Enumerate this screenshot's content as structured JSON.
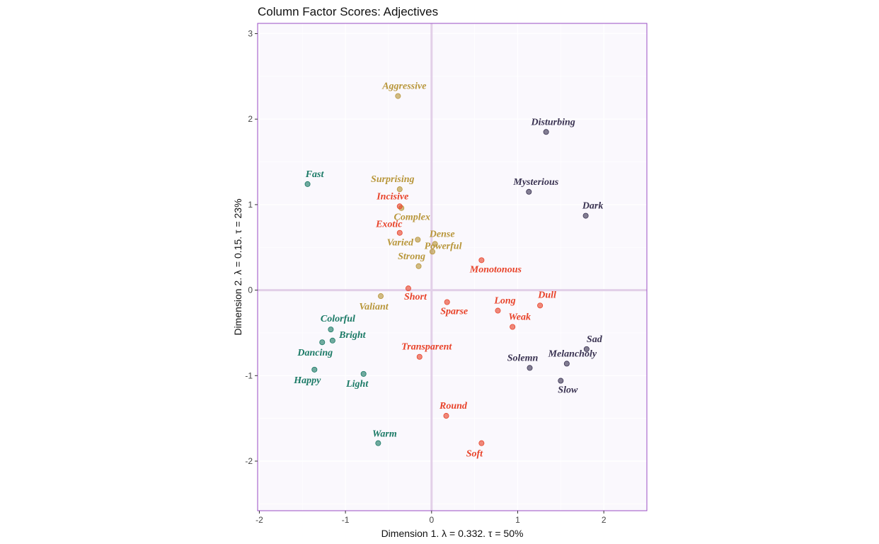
{
  "chart_data": {
    "type": "scatter",
    "title": "Column Factor Scores: Adjectives",
    "xlabel": "Dimension 1.   λ = 0.332.  τ = 50%",
    "ylabel": "Dimension 2.   λ = 0.15.  τ = 23%",
    "xlim": [
      -2.02,
      2.5
    ],
    "ylim": [
      -2.58,
      3.12
    ],
    "xticks": [
      -2,
      -1,
      0,
      1,
      2
    ],
    "yticks": [
      -2,
      -1,
      0,
      1,
      2,
      3
    ],
    "grid": true,
    "legend": "none",
    "colors": {
      "green": "#1b7a66",
      "gold": "#b8963a",
      "red": "#e8432a",
      "navy": "#3a3352",
      "panel_bg": "#faf8fd",
      "panel_border": "#9a4cc4",
      "zero_line": "#e2cfe8"
    },
    "series": [
      {
        "color": "green",
        "points": [
          {
            "label": "Fast",
            "x": -1.44,
            "y": 1.24
          },
          {
            "label": "Colorful",
            "x": -1.17,
            "y": -0.46
          },
          {
            "label": "Bright",
            "x": -1.15,
            "y": -0.59
          },
          {
            "label": "Dancing",
            "x": -1.27,
            "y": -0.61
          },
          {
            "label": "Happy",
            "x": -1.36,
            "y": -0.93
          },
          {
            "label": "Light",
            "x": -0.79,
            "y": -0.98
          },
          {
            "label": "Warm",
            "x": -0.62,
            "y": -1.79
          }
        ]
      },
      {
        "color": "gold",
        "points": [
          {
            "label": "Aggressive",
            "x": -0.39,
            "y": 2.27
          },
          {
            "label": "Surprising",
            "x": -0.37,
            "y": 1.18
          },
          {
            "label": "Complex",
            "x": -0.35,
            "y": 0.96
          },
          {
            "label": "Dense",
            "x": 0.04,
            "y": 0.54
          },
          {
            "label": "Varied",
            "x": -0.16,
            "y": 0.59
          },
          {
            "label": "Powerful",
            "x": 0.01,
            "y": 0.45
          },
          {
            "label": "Strong",
            "x": -0.15,
            "y": 0.28
          },
          {
            "label": "Valiant",
            "x": -0.59,
            "y": -0.07
          }
        ]
      },
      {
        "color": "red",
        "points": [
          {
            "label": "Incisive",
            "x": -0.37,
            "y": 0.98
          },
          {
            "label": "Exotic",
            "x": -0.37,
            "y": 0.67
          },
          {
            "label": "Monotonous",
            "x": 0.58,
            "y": 0.35
          },
          {
            "label": "Short",
            "x": -0.27,
            "y": 0.02
          },
          {
            "label": "Sparse",
            "x": 0.18,
            "y": -0.14
          },
          {
            "label": "Long",
            "x": 0.77,
            "y": -0.24
          },
          {
            "label": "Dull",
            "x": 1.26,
            "y": -0.18
          },
          {
            "label": "Weak",
            "x": 0.94,
            "y": -0.43
          },
          {
            "label": "Transparent",
            "x": -0.14,
            "y": -0.78
          },
          {
            "label": "Round",
            "x": 0.17,
            "y": -1.47
          },
          {
            "label": "Soft",
            "x": 0.58,
            "y": -1.79
          }
        ]
      },
      {
        "color": "navy",
        "points": [
          {
            "label": "Disturbing",
            "x": 1.33,
            "y": 1.85
          },
          {
            "label": "Mysterious",
            "x": 1.13,
            "y": 1.15
          },
          {
            "label": "Dark",
            "x": 1.79,
            "y": 0.87
          },
          {
            "label": "Sad",
            "x": 1.8,
            "y": -0.69
          },
          {
            "label": "Melancholy",
            "x": 1.57,
            "y": -0.86
          },
          {
            "label": "Solemn",
            "x": 1.14,
            "y": -0.91
          },
          {
            "label": "Slow",
            "x": 1.5,
            "y": -1.06
          }
        ]
      }
    ]
  }
}
